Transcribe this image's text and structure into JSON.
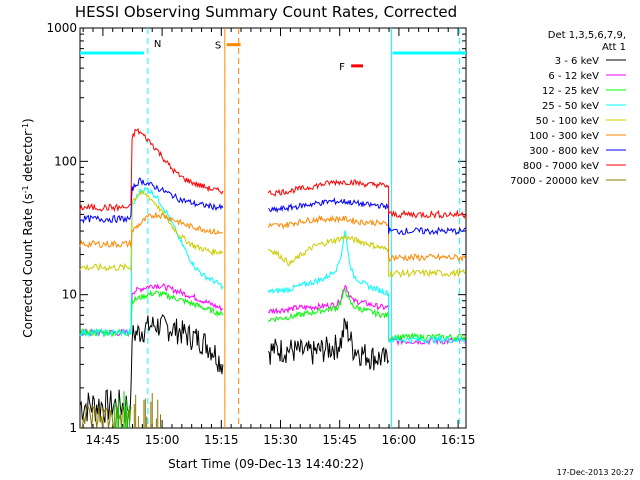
{
  "chart_data": {
    "type": "line",
    "title": "HESSI Observing Summary Count Rates, Corrected",
    "xlabel": "Start Time (09-Dec-13 14:40:22)",
    "ylabel": "Corrected Count Rate (s⁻¹ detector⁻¹)",
    "ylabel_parts": [
      "Corrected Count Rate (s",
      "-1",
      " detector",
      "-1",
      ")"
    ],
    "yscale": "log",
    "ylim": [
      1,
      1000
    ],
    "xlim_minutes": [
      -1.2,
      96.6
    ],
    "x_unit": "minutes since 14:40:22",
    "ytick_labels": [
      {
        "value": 1,
        "label": "1"
      },
      {
        "value": 10,
        "label": "10"
      },
      {
        "value": 100,
        "label": "100"
      },
      {
        "value": 1000,
        "label": "1000"
      }
    ],
    "xtick_labels": [
      {
        "minute": 4.6,
        "label": "14:45"
      },
      {
        "minute": 19.6,
        "label": "15:00"
      },
      {
        "minute": 34.6,
        "label": "15:15"
      },
      {
        "minute": 49.6,
        "label": "15:30"
      },
      {
        "minute": 64.6,
        "label": "15:45"
      },
      {
        "minute": 79.6,
        "label": "16:00"
      },
      {
        "minute": 94.6,
        "label": "16:15"
      }
    ],
    "legend_header": [
      "Det 1,3,5,6,7,9,",
      "Att 1"
    ],
    "legend_placement": "right",
    "gaps": [
      [
        35.5,
        46.5
      ]
    ],
    "series": [
      {
        "name": "3 - 6 keV",
        "color": "#000000",
        "x": [
          12.0,
          14.0,
          16.0,
          18.0,
          20.0,
          22.0,
          24.0,
          26.0,
          28.0,
          30.0,
          32.0,
          33.0,
          34.0,
          35.0,
          46.5,
          48.0,
          50.0,
          52.0,
          54.0,
          56.0,
          58.0,
          60.0,
          62.0,
          64.0,
          65.0,
          66.0,
          67.0,
          68.0,
          70.0,
          72.0,
          74.0,
          76.0,
          77.0
        ],
        "y": [
          5.0,
          5.3,
          5.8,
          6.0,
          5.8,
          5.6,
          5.4,
          5.0,
          4.8,
          4.5,
          4.0,
          3.7,
          3.3,
          3.0,
          3.8,
          3.9,
          3.9,
          3.9,
          3.8,
          3.7,
          3.7,
          3.9,
          4.0,
          4.2,
          4.5,
          6.0,
          5.0,
          4.0,
          3.7,
          3.5,
          3.4,
          3.3,
          3.2
        ]
      },
      {
        "name": "6 - 12 keV",
        "color": "#ff00ff",
        "x": [
          12.0,
          14.0,
          16.0,
          18.0,
          20.0,
          22.0,
          24.0,
          26.0,
          28.0,
          30.0,
          32.0,
          34.0,
          35.0,
          46.5,
          48.0,
          50.0,
          52.0,
          54.0,
          56.0,
          58.0,
          60.0,
          62.0,
          64.0,
          65.0,
          66.0,
          67.0,
          68.0,
          70.0,
          72.0,
          74.0,
          76.0,
          77.0
        ],
        "y": [
          10.5,
          11.0,
          11.5,
          11.8,
          11.5,
          11.0,
          10.5,
          10.0,
          9.5,
          9.0,
          8.5,
          8.0,
          7.8,
          7.5,
          7.6,
          7.7,
          7.8,
          8.0,
          8.0,
          8.1,
          8.2,
          8.3,
          8.5,
          9.5,
          12.0,
          10.0,
          9.0,
          8.8,
          8.5,
          8.2,
          8.0,
          8.0
        ]
      },
      {
        "name": "12 - 25 keV",
        "color": "#00ff00",
        "x": [
          12.0,
          14.0,
          16.0,
          18.0,
          20.0,
          22.0,
          24.0,
          26.0,
          28.0,
          30.0,
          32.0,
          34.0,
          35.0,
          46.5,
          48.0,
          50.0,
          52.0,
          54.0,
          56.0,
          58.0,
          60.0,
          62.0,
          64.0,
          65.0,
          66.0,
          67.0,
          68.0,
          70.0,
          72.0,
          74.0,
          76.0,
          77.0
        ],
        "y": [
          9.0,
          9.5,
          10.0,
          10.3,
          10.0,
          9.6,
          9.2,
          8.8,
          8.4,
          8.0,
          7.6,
          7.3,
          7.0,
          6.5,
          6.6,
          6.7,
          6.8,
          7.0,
          7.2,
          7.4,
          7.6,
          7.8,
          8.0,
          9.0,
          11.0,
          9.0,
          8.2,
          7.8,
          7.5,
          7.2,
          7.0,
          7.0
        ]
      },
      {
        "name": "25 - 50 keV",
        "color": "#00ffff",
        "x": [
          12.0,
          14.0,
          16.0,
          18.0,
          20.0,
          22.0,
          24.0,
          26.0,
          28.0,
          30.0,
          32.0,
          34.0,
          35.0,
          46.5,
          48.0,
          50.0,
          52.0,
          54.0,
          56.0,
          58.0,
          60.0,
          62.0,
          64.0,
          65.0,
          66.0,
          67.0,
          68.0,
          70.0,
          72.0,
          74.0,
          76.0,
          77.0
        ],
        "y": [
          45.0,
          60.0,
          62.0,
          55.0,
          45.0,
          35.0,
          26.0,
          20.0,
          16.0,
          14.0,
          13.0,
          12.0,
          11.5,
          10.5,
          10.6,
          10.8,
          11.0,
          11.5,
          12.0,
          12.5,
          13.0,
          14.0,
          16.0,
          20.0,
          30.0,
          18.0,
          14.0,
          12.5,
          11.5,
          11.0,
          10.5,
          10.2
        ]
      },
      {
        "name": "50 - 100 keV",
        "color": "#cccc00",
        "x": [
          12.0,
          14.0,
          16.0,
          18.0,
          20.0,
          22.0,
          24.0,
          26.0,
          28.0,
          30.0,
          32.0,
          34.0,
          35.0,
          46.5,
          48.0,
          50.0,
          52.0,
          54.0,
          56.0,
          58.0,
          60.0,
          62.0,
          64.0,
          66.0,
          68.0,
          70.0,
          72.0,
          74.0,
          76.0,
          77.0
        ],
        "y": [
          50.0,
          58.0,
          55.0,
          48.0,
          40.0,
          33.0,
          28.0,
          25.0,
          23.0,
          22.0,
          21.0,
          21.0,
          21.0,
          22.0,
          21.0,
          19.0,
          17.0,
          19.0,
          21.0,
          23.0,
          24.0,
          25.0,
          26.0,
          27.0,
          26.0,
          25.0,
          24.0,
          23.0,
          22.0,
          22.0
        ]
      },
      {
        "name": "100 - 300 keV",
        "color": "#ff8800",
        "x": [
          12.0,
          14.0,
          16.0,
          18.0,
          20.0,
          22.0,
          24.0,
          26.0,
          28.0,
          30.0,
          32.0,
          34.0,
          35.0,
          46.5,
          48.0,
          50.0,
          52.0,
          54.0,
          56.0,
          58.0,
          60.0,
          62.0,
          64.0,
          66.0,
          68.0,
          70.0,
          72.0,
          74.0,
          76.0,
          77.0
        ],
        "y": [
          30.0,
          34.0,
          38.0,
          40.0,
          39.0,
          37.0,
          35.0,
          33.0,
          32.0,
          31.0,
          30.0,
          29.0,
          29.0,
          33.0,
          33.0,
          33.0,
          34.0,
          35.0,
          36.0,
          36.5,
          37.0,
          37.0,
          37.0,
          37.0,
          36.0,
          35.0,
          35.0,
          34.5,
          34.0,
          34.0
        ]
      },
      {
        "name": "300 - 800 keV",
        "color": "#0000ff",
        "x": [
          12.0,
          14.0,
          16.0,
          18.0,
          20.0,
          22.0,
          24.0,
          26.0,
          28.0,
          30.0,
          32.0,
          34.0,
          35.0,
          46.5,
          48.0,
          50.0,
          52.0,
          54.0,
          56.0,
          58.0,
          60.0,
          62.0,
          64.0,
          66.0,
          68.0,
          70.0,
          72.0,
          74.0,
          76.0,
          77.0
        ],
        "y": [
          62.0,
          72.0,
          68.0,
          64.0,
          60.0,
          56.0,
          52.0,
          50.0,
          48.0,
          47.0,
          46.0,
          45.0,
          45.0,
          43.0,
          43.0,
          44.0,
          45.0,
          46.0,
          47.0,
          48.0,
          49.0,
          50.0,
          50.0,
          50.0,
          49.0,
          48.0,
          47.0,
          47.0,
          46.0,
          46.0
        ]
      },
      {
        "name": "800 - 7000 keV",
        "color": "#ff0000",
        "x": [
          12.0,
          13.0,
          14.0,
          16.0,
          18.0,
          20.0,
          22.0,
          24.0,
          26.0,
          28.0,
          30.0,
          32.0,
          34.0,
          35.0,
          46.5,
          48.0,
          50.0,
          52.0,
          54.0,
          56.0,
          58.0,
          60.0,
          62.0,
          64.0,
          66.0,
          68.0,
          70.0,
          72.0,
          74.0,
          76.0,
          77.0
        ],
        "y": [
          150.0,
          172.0,
          165.0,
          145.0,
          125.0,
          105.0,
          88.0,
          78.0,
          72.0,
          68.0,
          65.0,
          62.0,
          60.0,
          60.0,
          58.0,
          58.0,
          59.0,
          60.0,
          62.0,
          63.0,
          65.0,
          67.0,
          69.0,
          70.0,
          70.0,
          70.0,
          68.0,
          67.0,
          67.0,
          66.0,
          65.0
        ]
      },
      {
        "name": "7000 - 20000 keV",
        "color": "#887700",
        "x": [],
        "y": []
      }
    ],
    "segments": {
      "pre_flare": {
        "minutes": [
          -1.2,
          12.0
        ],
        "levels": {
          "3 - 6 keV": 1.5,
          "6 - 12 keV": 5.2,
          "12 - 25 keV": 5.2,
          "25 - 50 keV": 5.2,
          "50 - 100 keV": 16.0,
          "100 - 300 keV": 24.0,
          "300 - 800 keV": 37.0,
          "800 - 7000 keV": 45.0,
          "7000 - 20000 keV": 1.2
        }
      },
      "post_flare": {
        "minutes": [
          77.0,
          96.6
        ],
        "levels": {
          "6 - 12 keV": 4.5,
          "12 - 25 keV": 4.8,
          "25 - 50 keV": 4.6,
          "50 - 100 keV": 14.5,
          "100 - 300 keV": 19.0,
          "300 - 800 keV": 30.0,
          "800 - 7000 keV": 40.0
        }
      }
    },
    "status_bars": [
      {
        "label": "",
        "value": 650,
        "minutes": [
          -1.2,
          15.0
        ],
        "color": "#00ffff"
      },
      {
        "label": "",
        "value": 650,
        "minutes": [
          78.0,
          96.6
        ],
        "color": "#00ffff"
      },
      {
        "label": "S",
        "value": 750,
        "minutes": [
          36.0,
          39.5
        ],
        "color": "#ff8800"
      },
      {
        "label": "F",
        "value": 520,
        "minutes": [
          67.5,
          70.5
        ],
        "color": "#ff0000"
      }
    ],
    "markers": [
      {
        "label": "N",
        "minute": 16.0,
        "color": "#00ffff",
        "style": "dashed"
      },
      {
        "label": "",
        "minute": 95.0,
        "color": "#00ffff",
        "style": "dashed"
      },
      {
        "label": "",
        "minute": 77.7,
        "color": "#00ffff",
        "style": "solid"
      },
      {
        "label": "",
        "minute": 35.5,
        "color": "#ff8800",
        "style": "solid"
      },
      {
        "label": "",
        "minute": 39.0,
        "color": "#ff8800",
        "style": "dashed"
      }
    ],
    "timestamp": "17-Dec-2013 20:27"
  }
}
